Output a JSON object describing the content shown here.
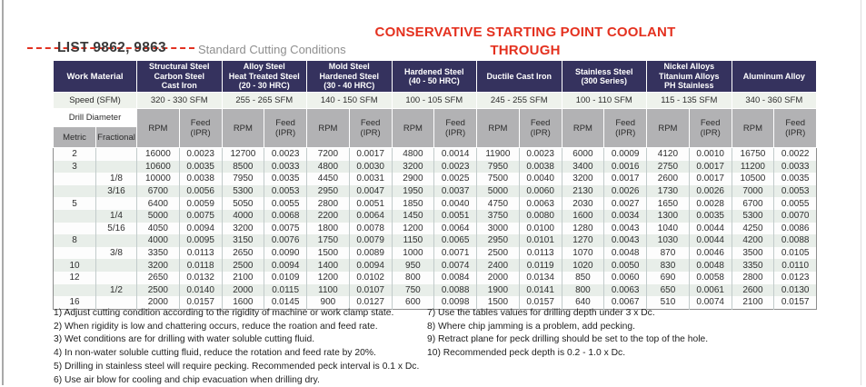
{
  "page": {
    "list_label": "LIST 9862, 9863",
    "subtitle": "Standard Cutting Conditions",
    "title_line1": "CONSERVATIVE STARTING POINT COOLANT",
    "title_line2": "THROUGH"
  },
  "colors": {
    "header_navy": "#35325e",
    "annotation_red": "#e4311f",
    "subheader_gray": "#b2b2b4",
    "row_alt_green": "#e8eee9",
    "speed_row": "#eef2ec"
  },
  "chart_data": {
    "type": "table",
    "work_material_label": "Work Material",
    "speed_label": "Speed (SFM)",
    "drill_diameter_label": "Drill Diameter",
    "metric_label": "Metric",
    "fractional_label": "Fractional",
    "rpm_label": "RPM",
    "feed_label_lines": [
      "Feed",
      "(IPR)"
    ],
    "materials": [
      {
        "name": [
          "Structural Steel",
          "Carbon Steel",
          "Cast Iron"
        ],
        "speed": "320 - 330 SFM"
      },
      {
        "name": [
          "Alloy Steel",
          "Heat Treated Steel",
          "(20 - 30 HRC)"
        ],
        "speed": "255 - 265 SFM"
      },
      {
        "name": [
          "Mold Steel",
          "Hardened Steel",
          "(30 - 40 HRC)"
        ],
        "speed": "140 - 150 SFM"
      },
      {
        "name": [
          "Hardened Steel",
          "(40 - 50 HRC)"
        ],
        "speed": "100 - 105 SFM"
      },
      {
        "name": [
          "Ductile Cast Iron"
        ],
        "speed": "245 - 255 SFM"
      },
      {
        "name": [
          "Stainless Steel",
          "(300 Series)"
        ],
        "speed": "100 - 110 SFM"
      },
      {
        "name": [
          "Nickel Alloys",
          "Titanium Alloys",
          "PH Stainless"
        ],
        "speed": "115 - 135 SFM"
      },
      {
        "name": [
          "Aluminum Alloy"
        ],
        "speed": "340 - 360 SFM"
      }
    ],
    "rows": [
      [
        "2",
        "",
        "16000",
        "0.0023",
        "12700",
        "0.0023",
        "7200",
        "0.0017",
        "4800",
        "0.0014",
        "11900",
        "0.0023",
        "6000",
        "0.0009",
        "4120",
        "0.0010",
        "16750",
        "0.0022"
      ],
      [
        "3",
        "",
        "10600",
        "0.0035",
        "8500",
        "0.0033",
        "4800",
        "0.0030",
        "3200",
        "0.0023",
        "7950",
        "0.0038",
        "3400",
        "0.0016",
        "2750",
        "0.0017",
        "11200",
        "0.0033"
      ],
      [
        "",
        "1/8",
        "10000",
        "0.0038",
        "7950",
        "0.0035",
        "4450",
        "0.0031",
        "2900",
        "0.0025",
        "7500",
        "0.0040",
        "3200",
        "0.0017",
        "2600",
        "0.0017",
        "10500",
        "0.0035"
      ],
      [
        "",
        "3/16",
        "6700",
        "0.0056",
        "5300",
        "0.0053",
        "2950",
        "0.0047",
        "1950",
        "0.0037",
        "5000",
        "0.0060",
        "2130",
        "0.0026",
        "1730",
        "0.0026",
        "7000",
        "0.0053"
      ],
      [
        "5",
        "",
        "6400",
        "0.0059",
        "5050",
        "0.0055",
        "2800",
        "0.0051",
        "1850",
        "0.0040",
        "4750",
        "0.0063",
        "2030",
        "0.0027",
        "1650",
        "0.0028",
        "6700",
        "0.0055"
      ],
      [
        "",
        "1/4",
        "5000",
        "0.0075",
        "4000",
        "0.0068",
        "2200",
        "0.0064",
        "1450",
        "0.0051",
        "3750",
        "0.0080",
        "1600",
        "0.0034",
        "1300",
        "0.0035",
        "5300",
        "0.0070"
      ],
      [
        "",
        "5/16",
        "4050",
        "0.0094",
        "3200",
        "0.0075",
        "1800",
        "0.0078",
        "1200",
        "0.0064",
        "3000",
        "0.0100",
        "1280",
        "0.0043",
        "1040",
        "0.0044",
        "4250",
        "0.0086"
      ],
      [
        "8",
        "",
        "4000",
        "0.0095",
        "3150",
        "0.0076",
        "1750",
        "0.0079",
        "1150",
        "0.0065",
        "2950",
        "0.0101",
        "1270",
        "0.0043",
        "1030",
        "0.0044",
        "4200",
        "0.0088"
      ],
      [
        "",
        "3/8",
        "3350",
        "0.0113",
        "2650",
        "0.0090",
        "1500",
        "0.0089",
        "1000",
        "0.0071",
        "2500",
        "0.0113",
        "1070",
        "0.0048",
        "870",
        "0.0046",
        "3500",
        "0.0105"
      ],
      [
        "10",
        "",
        "3200",
        "0.0118",
        "2500",
        "0.0094",
        "1400",
        "0.0094",
        "950",
        "0.0074",
        "2400",
        "0.0119",
        "1020",
        "0.0050",
        "830",
        "0.0048",
        "3350",
        "0.0110"
      ],
      [
        "12",
        "",
        "2650",
        "0.0132",
        "2100",
        "0.0109",
        "1200",
        "0.0102",
        "800",
        "0.0084",
        "2000",
        "0.0134",
        "850",
        "0.0060",
        "690",
        "0.0058",
        "2800",
        "0.0123"
      ],
      [
        "",
        "1/2",
        "2500",
        "0.0140",
        "2000",
        "0.0115",
        "1100",
        "0.0107",
        "750",
        "0.0088",
        "1900",
        "0.0141",
        "800",
        "0.0063",
        "650",
        "0.0061",
        "2600",
        "0.0130"
      ],
      [
        "16",
        "",
        "2000",
        "0.0157",
        "1600",
        "0.0145",
        "900",
        "0.0127",
        "600",
        "0.0098",
        "1500",
        "0.0157",
        "640",
        "0.0067",
        "510",
        "0.0074",
        "2100",
        "0.0157"
      ]
    ]
  },
  "footnotes": {
    "left": [
      "1) Adjust cutting condition according to the rigidity of machine or work clamp state.",
      "2) When rigidity is low and chattering occurs, reduce the roation and feed rate.",
      "3) Wet conditions are for drilling with water soluble cutting fluid.",
      "4) In non-water soluble cutting fluid, reduce the rotation and feed rate by 20%.",
      "5) Drilling in stainless steel will require pecking. Recommended peck interval is 0.1 x Dc.",
      "6) Use air blow for cooling and chip evacuation when drilling dry."
    ],
    "right": [
      "7) Use the tables values for drilling depth under 3 x Dc.",
      "8) Where chip jamming is a problem, add pecking.",
      "9) Retract plane for peck drilling should be set to the top of the hole.",
      "10) Recommended peck depth is 0.2 - 1.0 x Dc."
    ]
  }
}
